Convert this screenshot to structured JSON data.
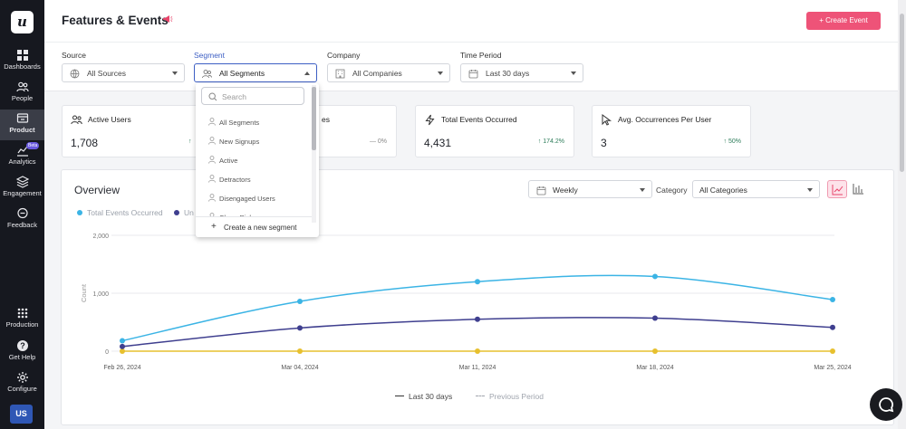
{
  "sidebar": {
    "logo": "u",
    "items": [
      {
        "label": "Dashboards",
        "icon": "grid-icon"
      },
      {
        "label": "People",
        "icon": "people-icon"
      },
      {
        "label": "Product",
        "icon": "product-icon",
        "active": true
      },
      {
        "label": "Analytics",
        "icon": "analytics-icon",
        "badge": "Beta"
      },
      {
        "label": "Engagement",
        "icon": "layers-icon"
      },
      {
        "label": "Feedback",
        "icon": "chat-icon"
      },
      {
        "label": "Production",
        "icon": "apps-grid-icon"
      },
      {
        "label": "Get Help",
        "icon": "help-icon"
      },
      {
        "label": "Configure",
        "icon": "gear-icon"
      }
    ],
    "avatar": "US"
  },
  "header": {
    "title": "Features & Events",
    "create_button": "+ Create Event",
    "filters": [
      {
        "label": "Source",
        "value": "All Sources"
      },
      {
        "label": "Segment",
        "value": "All Segments"
      },
      {
        "label": "Company",
        "value": "All Companies"
      },
      {
        "label": "Time Period",
        "value": "Last 30 days"
      }
    ]
  },
  "segment_dropdown": {
    "search_placeholder": "Search",
    "options": [
      "All Segments",
      "New Signups",
      "Active",
      "Detractors",
      "Disengaged Users",
      "Churn Risk"
    ],
    "create_label": "Create a new segment"
  },
  "cards": [
    {
      "title": "Active Users",
      "value": "1,708",
      "change": "",
      "icon": "people-icon"
    },
    {
      "title": "es",
      "value": "",
      "change": "— 0%",
      "icon": ""
    },
    {
      "title": "Total Events Occurred",
      "value": "4,431",
      "change": "174.2%",
      "icon": "bolt-icon"
    },
    {
      "title": "Avg. Occurrences Per User",
      "value": "3",
      "change": "50%",
      "icon": "cursor-icon"
    }
  ],
  "overview": {
    "title": "Overview",
    "interval": "Weekly",
    "category_label": "Category",
    "category": "All Categories",
    "footer_legend": [
      "Last 30 days",
      "Previous Period"
    ]
  },
  "colors": {
    "accent": "#ee5378",
    "series1": "#3bb4e5",
    "series2": "#3f3f8f",
    "series3": "#e7c02e"
  },
  "chart_data": {
    "type": "line",
    "x": [
      "Feb 26, 2024",
      "Mar 04, 2024",
      "Mar 11, 2024",
      "Mar 18, 2024",
      "Mar 25, 2024"
    ],
    "series": [
      {
        "name": "Total Events Occurred",
        "values": [
          180,
          860,
          1200,
          1290,
          890
        ]
      },
      {
        "name": "Un",
        "values": [
          80,
          400,
          550,
          570,
          410
        ]
      },
      {
        "values": [
          0,
          0,
          0,
          0,
          0
        ]
      }
    ],
    "ylabel": "Count",
    "yticks": [
      "0",
      "1,000",
      "2,000"
    ],
    "ylim": [
      0,
      2000
    ],
    "grid": true
  }
}
